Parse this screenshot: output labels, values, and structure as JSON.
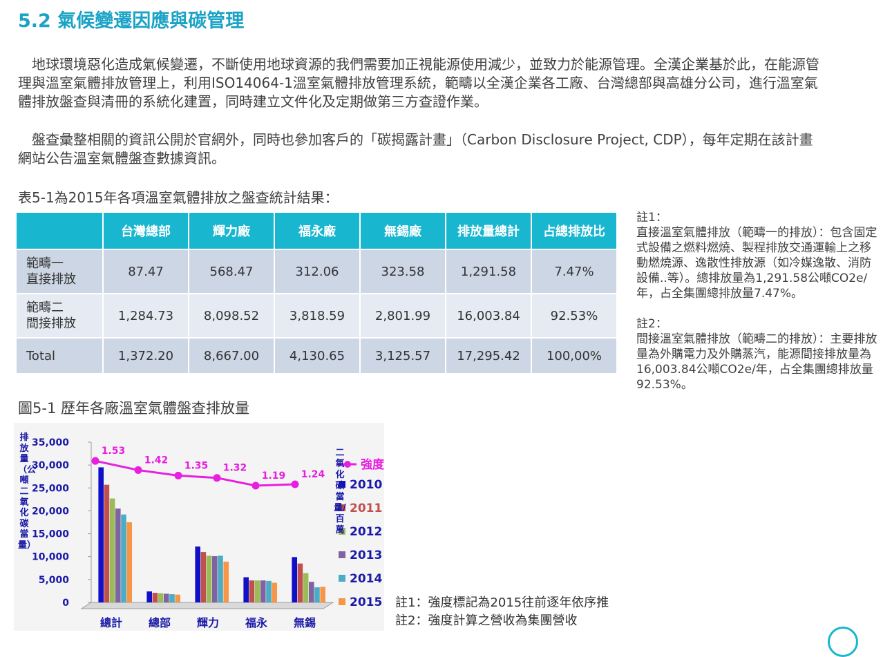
{
  "title": "5.2 氣候變遷因應與碳管理",
  "paragraphs": [
    "地球環境惡化造成氣候變遷，不斷使用地球資源的我們需要加正視能源使用減少，並致力於能源管理。全漢企業基於此，在能源管理與溫室氣體排放管理上，利用ISO14064-1溫室氣體排放管理系統，範疇以全漢企業各工廠、台灣總部與高雄分公司，進行溫室氣體排放盤查與清冊的系統化建置，同時建立文件化及定期做第三方查證作業。",
    "盤查彙整相關的資訊公開於官網外，同時也參加客戶的「碳揭露計畫」（Carbon Disclosure Project, CDP），每年定期在該計畫網站公告溫室氣體盤查數據資訊。"
  ],
  "table_caption": "表5-1為2015年各項溫室氣體排放之盤查統計結果：",
  "table": {
    "headers": [
      "",
      "台灣總部",
      "輝力廠",
      "福永廠",
      "無錫廠",
      "排放量總計",
      "占總排放比"
    ],
    "rows": [
      {
        "label_line1": "範疇一",
        "label_line2": "直接排放",
        "cells": [
          "87.47",
          "568.47",
          "312.06",
          "323.58",
          "1,291.58",
          "7.47%"
        ]
      },
      {
        "label_line1": "範疇二",
        "label_line2": "間接排放",
        "cells": [
          "1,284.73",
          "8,098.52",
          "3,818.59",
          "2,801.99",
          "16,003.84",
          "92.53%"
        ]
      },
      {
        "label_line1": "Total",
        "label_line2": "",
        "cells": [
          "1,372.20",
          "8,667.00",
          "4,130.65",
          "3,125.57",
          "17,295.42",
          "100,00%"
        ]
      }
    ]
  },
  "notes": [
    {
      "title": "註1：",
      "body": "直接溫室氣體排放（範疇一的排放）：包含固定式設備之燃料燃燒、製程排放交通運輸上之移動燃燒源、逸散性排放源（如冷媒逸散、消防設備..等）。總排放量為1,291.58公噸CO2e/年，占全集團總排放量7.47%。"
    },
    {
      "title": "註2：",
      "body": "間接溫室氣體排放（範疇二的排放）：主要排放量為外購電力及外購蒸汽，能源間接排放量為16,003.84公噸CO2e/年，占全集團總排放量92.53%。"
    }
  ],
  "figure_caption": "圖5-1  歷年各廠溫室氣體盤查排放量",
  "chart_notes": [
    "註1：強度標記為2015往前逐年依序推",
    "註2：強度計算之營收為集團營收"
  ],
  "chart_data": {
    "type": "bar",
    "ylabel": "排放量（公噸二氧化碳當量）",
    "y2label": "二氧化碳當量/百萬",
    "ylim": [
      0,
      35000
    ],
    "yticks": [
      "35,000",
      "30,000",
      "25,000",
      "20,000",
      "15,000",
      "10,000",
      "5,000",
      "0"
    ],
    "categories": [
      "總計",
      "總部",
      "輝力",
      "福永",
      "無錫"
    ],
    "series": [
      {
        "name": "2010",
        "color": "#1010c8",
        "values": [
          29500,
          2400,
          12200,
          5500,
          9900
        ]
      },
      {
        "name": "2011",
        "color": "#c0504d",
        "values": [
          25700,
          2100,
          11000,
          4800,
          8500
        ]
      },
      {
        "name": "2012",
        "color": "#9bbb59",
        "values": [
          22700,
          2000,
          10200,
          4800,
          6400
        ]
      },
      {
        "name": "2013",
        "color": "#8064a2",
        "values": [
          20500,
          1900,
          10100,
          4800,
          4500
        ]
      },
      {
        "name": "2014",
        "color": "#4bacc6",
        "values": [
          19200,
          1800,
          10200,
          4700,
          3300
        ]
      },
      {
        "name": "2015",
        "color": "#f79646",
        "values": [
          17500,
          1700,
          8900,
          4300,
          3400
        ]
      }
    ],
    "intensity": {
      "name": "強度",
      "color": "#e81ee0",
      "labels": [
        "1.53",
        "1.42",
        "1.35",
        "1.32",
        "1.19",
        "1.24"
      ],
      "values": [
        30900,
        28900,
        27700,
        27200,
        25500,
        25800
      ]
    },
    "legend_position": "right",
    "grid": false
  }
}
